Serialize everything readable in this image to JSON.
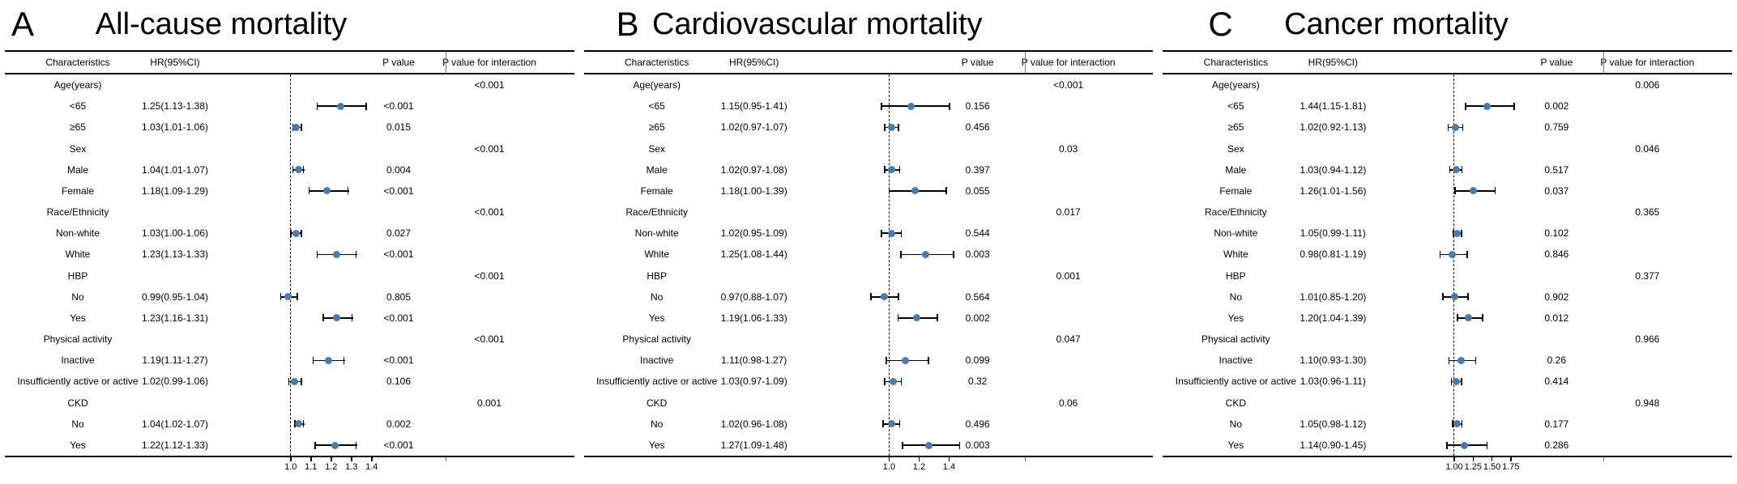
{
  "chart_data": [
    {
      "type": "scatter",
      "variant": "forest-plot",
      "panel_label": "A",
      "title": "All-cause mortality",
      "columns": [
        "Characteristics",
        "HR(95%CI)",
        "P value",
        "P value for interaction"
      ],
      "ref_line": 1.0,
      "x_ticks": [
        1.0,
        1.1,
        1.2,
        1.3,
        1.4
      ],
      "x_tick_labels": [
        "1.0",
        "1.1",
        "1.2",
        "1.3",
        "1.4"
      ],
      "marker_color": "#4a7bab",
      "rows": [
        {
          "characteristic": "Age(years)",
          "group": true,
          "p_interaction": "<0.001"
        },
        {
          "characteristic": "<65",
          "hr_ci": "1.25(1.13-1.38)",
          "hr": 1.25,
          "lo": 1.13,
          "hi": 1.38,
          "p": "<0.001"
        },
        {
          "characteristic": "≥65",
          "hr_ci": "1.03(1.01-1.06)",
          "hr": 1.03,
          "lo": 1.01,
          "hi": 1.06,
          "p": "0.015"
        },
        {
          "characteristic": "Sex",
          "group": true,
          "p_interaction": "<0.001"
        },
        {
          "characteristic": "Male",
          "hr_ci": "1.04(1.01-1.07)",
          "hr": 1.04,
          "lo": 1.01,
          "hi": 1.07,
          "p": "0.004"
        },
        {
          "characteristic": "Female",
          "hr_ci": "1.18(1.09-1.29)",
          "hr": 1.18,
          "lo": 1.09,
          "hi": 1.29,
          "p": "<0.001"
        },
        {
          "characteristic": "Race/Ethnicity",
          "group": true,
          "p_interaction": "<0.001"
        },
        {
          "characteristic": "Non-white",
          "hr_ci": "1.03(1.00-1.06)",
          "hr": 1.03,
          "lo": 1.0,
          "hi": 1.06,
          "p": "0.027"
        },
        {
          "characteristic": "White",
          "hr_ci": "1.23(1.13-1.33)",
          "hr": 1.23,
          "lo": 1.13,
          "hi": 1.33,
          "p": "<0.001"
        },
        {
          "characteristic": "HBP",
          "group": true,
          "p_interaction": "<0.001"
        },
        {
          "characteristic": "No",
          "hr_ci": "0.99(0.95-1.04)",
          "hr": 0.99,
          "lo": 0.95,
          "hi": 1.04,
          "p": "0.805"
        },
        {
          "characteristic": "Yes",
          "hr_ci": "1.23(1.16-1.31)",
          "hr": 1.23,
          "lo": 1.16,
          "hi": 1.31,
          "p": "<0.001"
        },
        {
          "characteristic": "Physical activity",
          "group": true,
          "p_interaction": "<0.001"
        },
        {
          "characteristic": "Inactive",
          "hr_ci": "1.19(1.11-1.27)",
          "hr": 1.19,
          "lo": 1.11,
          "hi": 1.27,
          "p": "<0.001"
        },
        {
          "characteristic": "Insufficiently active or active",
          "hr_ci": "1.02(0.99-1.06)",
          "hr": 1.02,
          "lo": 0.99,
          "hi": 1.06,
          "p": "0.106"
        },
        {
          "characteristic": "CKD",
          "group": true,
          "p_interaction": "0.001"
        },
        {
          "characteristic": "No",
          "hr_ci": "1.04(1.02-1.07)",
          "hr": 1.04,
          "lo": 1.02,
          "hi": 1.07,
          "p": "0.002"
        },
        {
          "characteristic": "Yes",
          "hr_ci": "1.22(1.12-1.33)",
          "hr": 1.22,
          "lo": 1.12,
          "hi": 1.33,
          "p": "<0.001"
        }
      ]
    },
    {
      "type": "scatter",
      "variant": "forest-plot",
      "panel_label": "B",
      "title": "Cardiovascular mortality",
      "columns": [
        "Characteristics",
        "HR(95%CI)",
        "P value",
        "P value for interaction"
      ],
      "ref_line": 1.0,
      "x_ticks": [
        1.0,
        1.2,
        1.4
      ],
      "x_tick_labels": [
        "1.0",
        "1.2",
        "1.4"
      ],
      "marker_color": "#4a7bab",
      "rows": [
        {
          "characteristic": "Age(years)",
          "group": true,
          "p_interaction": "<0.001"
        },
        {
          "characteristic": "<65",
          "hr_ci": "1.15(0.95-1.41)",
          "hr": 1.15,
          "lo": 0.95,
          "hi": 1.41,
          "p": "0.156"
        },
        {
          "characteristic": "≥65",
          "hr_ci": "1.02(0.97-1.07)",
          "hr": 1.02,
          "lo": 0.97,
          "hi": 1.07,
          "p": "0.456"
        },
        {
          "characteristic": "Sex",
          "group": true,
          "p_interaction": "0.03"
        },
        {
          "characteristic": "Male",
          "hr_ci": "1.02(0.97-1.08)",
          "hr": 1.02,
          "lo": 0.97,
          "hi": 1.08,
          "p": "0.397"
        },
        {
          "characteristic": "Female",
          "hr_ci": "1.18(1.00-1.39)",
          "hr": 1.18,
          "lo": 1.0,
          "hi": 1.39,
          "p": "0.055"
        },
        {
          "characteristic": "Race/Ethnicity",
          "group": true,
          "p_interaction": "0.017"
        },
        {
          "characteristic": "Non-white",
          "hr_ci": "1.02(0.95-1.09)",
          "hr": 1.02,
          "lo": 0.95,
          "hi": 1.09,
          "p": "0.544"
        },
        {
          "characteristic": "White",
          "hr_ci": "1.25(1.08-1.44)",
          "hr": 1.25,
          "lo": 1.08,
          "hi": 1.44,
          "p": "0.003"
        },
        {
          "characteristic": "HBP",
          "group": true,
          "p_interaction": "0.001"
        },
        {
          "characteristic": "No",
          "hr_ci": "0.97(0.88-1.07)",
          "hr": 0.97,
          "lo": 0.88,
          "hi": 1.07,
          "p": "0.564"
        },
        {
          "characteristic": "Yes",
          "hr_ci": "1.19(1.06-1.33)",
          "hr": 1.19,
          "lo": 1.06,
          "hi": 1.33,
          "p": "0.002"
        },
        {
          "characteristic": "Physical activity",
          "group": true,
          "p_interaction": "0.047"
        },
        {
          "characteristic": "Inactive",
          "hr_ci": "1.11(0.98-1.27)",
          "hr": 1.11,
          "lo": 0.98,
          "hi": 1.27,
          "p": "0.099"
        },
        {
          "characteristic": "Insufficiently active or active",
          "hr_ci": "1.03(0.97-1.09)",
          "hr": 1.03,
          "lo": 0.97,
          "hi": 1.09,
          "p": "0.32"
        },
        {
          "characteristic": "CKD",
          "group": true,
          "p_interaction": "0.06"
        },
        {
          "characteristic": "No",
          "hr_ci": "1.02(0.96-1.08)",
          "hr": 1.02,
          "lo": 0.96,
          "hi": 1.08,
          "p": "0.496"
        },
        {
          "characteristic": "Yes",
          "hr_ci": "1.27(1.09-1.48)",
          "hr": 1.27,
          "lo": 1.09,
          "hi": 1.48,
          "p": "0.003"
        }
      ]
    },
    {
      "type": "scatter",
      "variant": "forest-plot",
      "panel_label": "C",
      "title": "Cancer mortality",
      "columns": [
        "Characteristics",
        "HR(95%CI)",
        "P value",
        "P value for interaction"
      ],
      "ref_line": 1.0,
      "x_ticks": [
        1.0,
        1.25,
        1.5,
        1.75
      ],
      "x_tick_labels": [
        "1.00",
        "1.25",
        "1.50",
        "1.75"
      ],
      "marker_color": "#4a7bab",
      "rows": [
        {
          "characteristic": "Age(years)",
          "group": true,
          "p_interaction": "0.006"
        },
        {
          "characteristic": "<65",
          "hr_ci": "1.44(1.15-1.81)",
          "hr": 1.44,
          "lo": 1.15,
          "hi": 1.81,
          "p": "0.002"
        },
        {
          "characteristic": "≥65",
          "hr_ci": "1.02(0.92-1.13)",
          "hr": 1.02,
          "lo": 0.92,
          "hi": 1.13,
          "p": "0.759"
        },
        {
          "characteristic": "Sex",
          "group": true,
          "p_interaction": "0.046"
        },
        {
          "characteristic": "Male",
          "hr_ci": "1.03(0.94-1.12)",
          "hr": 1.03,
          "lo": 0.94,
          "hi": 1.12,
          "p": "0.517"
        },
        {
          "characteristic": "Female",
          "hr_ci": "1.26(1.01-1.56)",
          "hr": 1.26,
          "lo": 1.01,
          "hi": 1.56,
          "p": "0.037"
        },
        {
          "characteristic": "Race/Ethnicity",
          "group": true,
          "p_interaction": "0.365"
        },
        {
          "characteristic": "Non-white",
          "hr_ci": "1.05(0.99-1.11)",
          "hr": 1.05,
          "lo": 0.99,
          "hi": 1.11,
          "p": "0.102"
        },
        {
          "characteristic": "White",
          "hr_ci": "0.98(0.81-1.19)",
          "hr": 0.98,
          "lo": 0.81,
          "hi": 1.19,
          "p": "0.846"
        },
        {
          "characteristic": "HBP",
          "group": true,
          "p_interaction": "0.377"
        },
        {
          "characteristic": "No",
          "hr_ci": "1.01(0.85-1.20)",
          "hr": 1.01,
          "lo": 0.85,
          "hi": 1.2,
          "p": "0.902"
        },
        {
          "characteristic": "Yes",
          "hr_ci": "1.20(1.04-1.39)",
          "hr": 1.2,
          "lo": 1.04,
          "hi": 1.39,
          "p": "0.012"
        },
        {
          "characteristic": "Physical activity",
          "group": true,
          "p_interaction": "0.966"
        },
        {
          "characteristic": "Inactive",
          "hr_ci": "1.10(0.93-1.30)",
          "hr": 1.1,
          "lo": 0.93,
          "hi": 1.3,
          "p": "0.26"
        },
        {
          "characteristic": "Insufficiently active or active",
          "hr_ci": "1.03(0.96-1.11)",
          "hr": 1.03,
          "lo": 0.96,
          "hi": 1.11,
          "p": "0.414"
        },
        {
          "characteristic": "CKD",
          "group": true,
          "p_interaction": "0.948"
        },
        {
          "characteristic": "No",
          "hr_ci": "1.05(0.98-1.12)",
          "hr": 1.05,
          "lo": 0.98,
          "hi": 1.12,
          "p": "0.177"
        },
        {
          "characteristic": "Yes",
          "hr_ci": "1.14(0.90-1.45)",
          "hr": 1.14,
          "lo": 0.9,
          "hi": 1.45,
          "p": "0.286"
        }
      ]
    }
  ]
}
